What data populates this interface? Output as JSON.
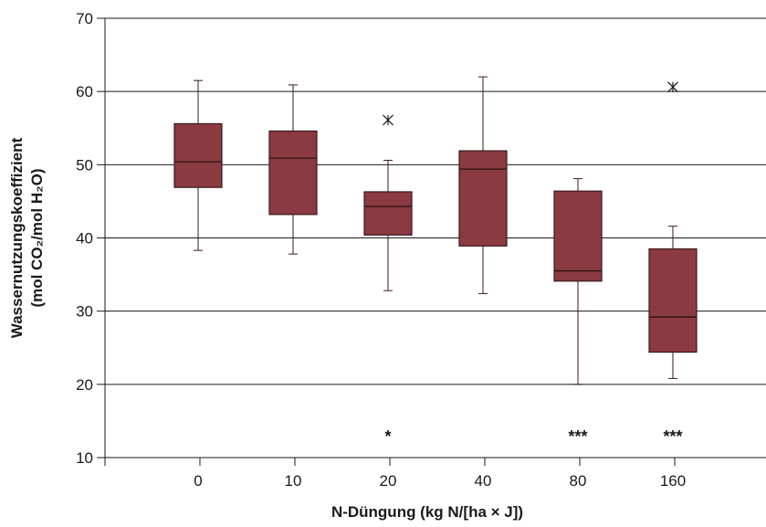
{
  "chart_data": {
    "type": "box",
    "xlabel": "N-Düngung (kg N/[ha × J])",
    "ylabel_line1": "Wassernutzungskoeffizient",
    "ylabel_line2": "(mol CO₂/mol H₂O)",
    "ylim": [
      10,
      70
    ],
    "yticks": [
      10,
      20,
      30,
      40,
      50,
      60,
      70
    ],
    "grid": "horizontal",
    "colors": {
      "box_fill": "#8b3a42",
      "box_stroke": "#3a1a1c",
      "grid": "#1a1a1a"
    },
    "categories": [
      "0",
      "10",
      "20",
      "40",
      "80",
      "160"
    ],
    "boxes": [
      {
        "category": "0",
        "whisker_low": 38.3,
        "q1": 46.9,
        "median": 50.4,
        "q3": 55.6,
        "whisker_high": 61.5,
        "outliers": [],
        "significance": ""
      },
      {
        "category": "10",
        "whisker_low": 37.8,
        "q1": 43.2,
        "median": 50.9,
        "q3": 54.6,
        "whisker_high": 60.9,
        "outliers": [],
        "significance": ""
      },
      {
        "category": "20",
        "whisker_low": 32.8,
        "q1": 40.4,
        "median": 44.3,
        "q3": 46.3,
        "whisker_high": 50.6,
        "outliers": [
          56.1
        ],
        "significance": "*"
      },
      {
        "category": "40",
        "whisker_low": 32.4,
        "q1": 38.9,
        "median": 49.4,
        "q3": 51.9,
        "whisker_high": 62.0,
        "outliers": [],
        "significance": ""
      },
      {
        "category": "80",
        "whisker_low": 20.0,
        "q1": 34.1,
        "median": 35.5,
        "q3": 46.4,
        "whisker_high": 48.1,
        "outliers": [],
        "significance": "***"
      },
      {
        "category": "160",
        "whisker_low": 20.8,
        "q1": 24.4,
        "median": 29.2,
        "q3": 38.5,
        "whisker_high": 41.6,
        "outliers": [
          60.6
        ],
        "significance": "***"
      }
    ]
  }
}
